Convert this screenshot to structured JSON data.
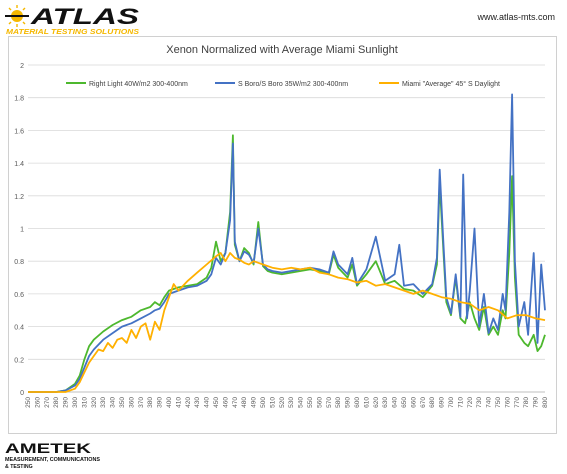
{
  "header": {
    "brand_name": "ATLAS",
    "tagline": "MATERIAL TESTING SOLUTIONS",
    "website": "www.atlas-mts.com"
  },
  "footer": {
    "brand_name": "AMETEK",
    "tagline_line1": "MEASUREMENT, COMMUNICATIONS",
    "tagline_line2": "& TESTING"
  },
  "colors": {
    "series_green": "#4db82e",
    "series_blue": "#4472c4",
    "series_yellow": "#ffb000",
    "grid": "#d9d9d9",
    "atlas_yellow": "#f5b800"
  },
  "chart_data": {
    "type": "line",
    "title": "Xenon Normalized with Average Miami Sunlight",
    "xlabel": "",
    "ylabel": "",
    "xlim": [
      250,
      800
    ],
    "ylim": [
      0,
      2
    ],
    "grid": "horizontal",
    "legend": "top",
    "x_ticks": [
      250,
      260,
      270,
      280,
      290,
      300,
      310,
      320,
      330,
      340,
      350,
      360,
      370,
      380,
      390,
      400,
      410,
      420,
      430,
      440,
      450,
      460,
      470,
      480,
      490,
      500,
      510,
      520,
      530,
      540,
      550,
      560,
      570,
      580,
      590,
      600,
      610,
      620,
      630,
      640,
      650,
      660,
      670,
      680,
      690,
      700,
      710,
      720,
      730,
      740,
      750,
      760,
      770,
      780,
      790,
      800
    ],
    "y_ticks": [
      "0",
      "0.2",
      "0.4",
      "0.6",
      "0.8",
      "1",
      "1.2",
      "1.4",
      "1.6",
      "1.8",
      "2"
    ],
    "series": [
      {
        "name": "Right Light 40W/m2 300-400nm",
        "color": "#4db82e",
        "points": [
          [
            250,
            0
          ],
          [
            280,
            0
          ],
          [
            290,
            0.01
          ],
          [
            300,
            0.05
          ],
          [
            305,
            0.1
          ],
          [
            310,
            0.2
          ],
          [
            315,
            0.28
          ],
          [
            320,
            0.32
          ],
          [
            330,
            0.37
          ],
          [
            340,
            0.41
          ],
          [
            350,
            0.44
          ],
          [
            360,
            0.46
          ],
          [
            370,
            0.5
          ],
          [
            380,
            0.52
          ],
          [
            385,
            0.55
          ],
          [
            390,
            0.53
          ],
          [
            395,
            0.58
          ],
          [
            400,
            0.62
          ],
          [
            410,
            0.64
          ],
          [
            420,
            0.65
          ],
          [
            430,
            0.66
          ],
          [
            440,
            0.7
          ],
          [
            445,
            0.76
          ],
          [
            450,
            0.92
          ],
          [
            455,
            0.8
          ],
          [
            460,
            0.85
          ],
          [
            465,
            1.1
          ],
          [
            468,
            1.57
          ],
          [
            470,
            0.9
          ],
          [
            475,
            0.8
          ],
          [
            480,
            0.88
          ],
          [
            485,
            0.85
          ],
          [
            490,
            0.78
          ],
          [
            495,
            1.04
          ],
          [
            500,
            0.77
          ],
          [
            505,
            0.74
          ],
          [
            510,
            0.73
          ],
          [
            520,
            0.72
          ],
          [
            530,
            0.73
          ],
          [
            540,
            0.74
          ],
          [
            550,
            0.75
          ],
          [
            560,
            0.74
          ],
          [
            570,
            0.72
          ],
          [
            575,
            0.84
          ],
          [
            580,
            0.76
          ],
          [
            590,
            0.7
          ],
          [
            595,
            0.78
          ],
          [
            600,
            0.65
          ],
          [
            610,
            0.72
          ],
          [
            620,
            0.8
          ],
          [
            630,
            0.66
          ],
          [
            640,
            0.68
          ],
          [
            650,
            0.63
          ],
          [
            660,
            0.62
          ],
          [
            670,
            0.58
          ],
          [
            680,
            0.65
          ],
          [
            685,
            0.78
          ],
          [
            688,
            1.28
          ],
          [
            692,
            0.85
          ],
          [
            695,
            0.55
          ],
          [
            700,
            0.47
          ],
          [
            705,
            0.7
          ],
          [
            710,
            0.45
          ],
          [
            715,
            0.42
          ],
          [
            720,
            0.55
          ],
          [
            725,
            0.45
          ],
          [
            730,
            0.38
          ],
          [
            735,
            0.52
          ],
          [
            740,
            0.35
          ],
          [
            745,
            0.4
          ],
          [
            750,
            0.35
          ],
          [
            755,
            0.5
          ],
          [
            758,
            0.45
          ],
          [
            762,
            0.85
          ],
          [
            765,
            1.32
          ],
          [
            768,
            0.7
          ],
          [
            772,
            0.35
          ],
          [
            778,
            0.3
          ],
          [
            782,
            0.28
          ],
          [
            788,
            0.35
          ],
          [
            792,
            0.25
          ],
          [
            796,
            0.28
          ],
          [
            800,
            0.35
          ]
        ]
      },
      {
        "name": "S Boro/S Boro 35W/m2 300-400nm",
        "color": "#4472c4",
        "points": [
          [
            250,
            0
          ],
          [
            280,
            0
          ],
          [
            290,
            0.01
          ],
          [
            300,
            0.04
          ],
          [
            305,
            0.08
          ],
          [
            310,
            0.15
          ],
          [
            315,
            0.22
          ],
          [
            320,
            0.26
          ],
          [
            330,
            0.32
          ],
          [
            340,
            0.36
          ],
          [
            350,
            0.4
          ],
          [
            360,
            0.42
          ],
          [
            370,
            0.45
          ],
          [
            380,
            0.48
          ],
          [
            385,
            0.5
          ],
          [
            390,
            0.51
          ],
          [
            395,
            0.55
          ],
          [
            400,
            0.6
          ],
          [
            410,
            0.62
          ],
          [
            420,
            0.64
          ],
          [
            430,
            0.65
          ],
          [
            440,
            0.68
          ],
          [
            445,
            0.72
          ],
          [
            450,
            0.82
          ],
          [
            455,
            0.78
          ],
          [
            460,
            0.85
          ],
          [
            465,
            1.05
          ],
          [
            468,
            1.52
          ],
          [
            470,
            0.92
          ],
          [
            475,
            0.8
          ],
          [
            480,
            0.86
          ],
          [
            485,
            0.84
          ],
          [
            490,
            0.79
          ],
          [
            495,
            1.0
          ],
          [
            500,
            0.78
          ],
          [
            505,
            0.75
          ],
          [
            510,
            0.74
          ],
          [
            520,
            0.73
          ],
          [
            530,
            0.74
          ],
          [
            540,
            0.75
          ],
          [
            550,
            0.76
          ],
          [
            560,
            0.75
          ],
          [
            570,
            0.73
          ],
          [
            575,
            0.86
          ],
          [
            580,
            0.78
          ],
          [
            590,
            0.72
          ],
          [
            595,
            0.82
          ],
          [
            600,
            0.66
          ],
          [
            610,
            0.75
          ],
          [
            620,
            0.95
          ],
          [
            630,
            0.68
          ],
          [
            640,
            0.72
          ],
          [
            645,
            0.9
          ],
          [
            650,
            0.65
          ],
          [
            660,
            0.66
          ],
          [
            670,
            0.6
          ],
          [
            680,
            0.66
          ],
          [
            685,
            0.82
          ],
          [
            688,
            1.36
          ],
          [
            692,
            0.9
          ],
          [
            695,
            0.58
          ],
          [
            700,
            0.48
          ],
          [
            705,
            0.72
          ],
          [
            710,
            0.46
          ],
          [
            713,
            1.33
          ],
          [
            717,
            0.45
          ],
          [
            720,
            0.62
          ],
          [
            725,
            1.0
          ],
          [
            730,
            0.4
          ],
          [
            735,
            0.6
          ],
          [
            740,
            0.36
          ],
          [
            745,
            0.45
          ],
          [
            750,
            0.38
          ],
          [
            755,
            0.6
          ],
          [
            758,
            0.5
          ],
          [
            762,
            1.1
          ],
          [
            765,
            1.82
          ],
          [
            768,
            0.8
          ],
          [
            772,
            0.4
          ],
          [
            778,
            0.55
          ],
          [
            782,
            0.35
          ],
          [
            788,
            0.85
          ],
          [
            792,
            0.3
          ],
          [
            796,
            0.78
          ],
          [
            800,
            0.5
          ]
        ]
      },
      {
        "name": "Miami \"Average\" 45° S Daylight",
        "color": "#ffb000",
        "points": [
          [
            250,
            0
          ],
          [
            290,
            0
          ],
          [
            300,
            0.02
          ],
          [
            305,
            0.06
          ],
          [
            310,
            0.12
          ],
          [
            315,
            0.18
          ],
          [
            320,
            0.22
          ],
          [
            325,
            0.26
          ],
          [
            330,
            0.25
          ],
          [
            335,
            0.3
          ],
          [
            340,
            0.27
          ],
          [
            345,
            0.32
          ],
          [
            350,
            0.33
          ],
          [
            355,
            0.3
          ],
          [
            360,
            0.38
          ],
          [
            365,
            0.33
          ],
          [
            370,
            0.4
          ],
          [
            375,
            0.42
          ],
          [
            380,
            0.32
          ],
          [
            385,
            0.43
          ],
          [
            390,
            0.38
          ],
          [
            395,
            0.5
          ],
          [
            400,
            0.58
          ],
          [
            405,
            0.66
          ],
          [
            410,
            0.62
          ],
          [
            420,
            0.68
          ],
          [
            430,
            0.73
          ],
          [
            440,
            0.78
          ],
          [
            450,
            0.83
          ],
          [
            455,
            0.85
          ],
          [
            460,
            0.8
          ],
          [
            465,
            0.85
          ],
          [
            470,
            0.82
          ],
          [
            475,
            0.81
          ],
          [
            480,
            0.79
          ],
          [
            485,
            0.78
          ],
          [
            490,
            0.8
          ],
          [
            495,
            0.79
          ],
          [
            500,
            0.78
          ],
          [
            510,
            0.76
          ],
          [
            520,
            0.75
          ],
          [
            530,
            0.76
          ],
          [
            540,
            0.75
          ],
          [
            550,
            0.76
          ],
          [
            560,
            0.73
          ],
          [
            570,
            0.72
          ],
          [
            580,
            0.7
          ],
          [
            590,
            0.69
          ],
          [
            600,
            0.67
          ],
          [
            610,
            0.68
          ],
          [
            620,
            0.65
          ],
          [
            630,
            0.66
          ],
          [
            640,
            0.64
          ],
          [
            650,
            0.62
          ],
          [
            660,
            0.6
          ],
          [
            670,
            0.62
          ],
          [
            680,
            0.6
          ],
          [
            690,
            0.58
          ],
          [
            700,
            0.57
          ],
          [
            710,
            0.55
          ],
          [
            720,
            0.54
          ],
          [
            730,
            0.5
          ],
          [
            740,
            0.52
          ],
          [
            750,
            0.5
          ],
          [
            760,
            0.45
          ],
          [
            770,
            0.47
          ],
          [
            780,
            0.47
          ],
          [
            790,
            0.45
          ],
          [
            800,
            0.44
          ]
        ]
      }
    ]
  }
}
